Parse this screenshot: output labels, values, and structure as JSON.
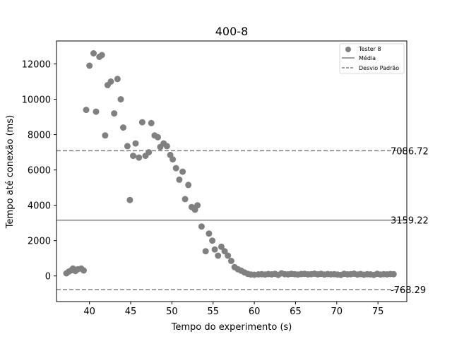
{
  "chart_data": {
    "type": "scatter",
    "title": "400-8",
    "xlabel": "Tempo do experimento (s)",
    "ylabel": "Tempo até conexão (ms)",
    "xlim": [
      36.0,
      78.5
    ],
    "ylim": [
      -1450,
      13300
    ],
    "x_ticks": [
      40,
      45,
      50,
      55,
      60,
      65,
      70,
      75
    ],
    "y_ticks": [
      0,
      2000,
      4000,
      6000,
      8000,
      10000,
      12000
    ],
    "grid": false,
    "legend_position": "top-right",
    "legend": {
      "scatter_label": "Tester 8",
      "mean_label": "Média",
      "std_label": "Desvio Padrão"
    },
    "reference_lines": {
      "mean": 3159.22,
      "upper": 7086.72,
      "lower": -768.29,
      "mean_label": "3159.22",
      "upper_label": "7086.72",
      "lower_label": "-768.29"
    },
    "colors": {
      "points": "#808080",
      "lines": "#808080",
      "axes": "#000000"
    },
    "series": [
      {
        "name": "Tester 8",
        "points": [
          [
            37.2,
            150
          ],
          [
            37.5,
            250
          ],
          [
            37.8,
            320
          ],
          [
            38.0,
            420
          ],
          [
            38.3,
            280
          ],
          [
            38.6,
            380
          ],
          [
            39.0,
            420
          ],
          [
            39.3,
            310
          ],
          [
            39.6,
            9400
          ],
          [
            40.0,
            11900
          ],
          [
            40.5,
            12600
          ],
          [
            40.8,
            9300
          ],
          [
            41.2,
            12400
          ],
          [
            41.5,
            12500
          ],
          [
            41.9,
            7950
          ],
          [
            42.2,
            10800
          ],
          [
            42.6,
            11000
          ],
          [
            43.0,
            9200
          ],
          [
            43.4,
            11150
          ],
          [
            43.8,
            10000
          ],
          [
            44.1,
            8400
          ],
          [
            44.6,
            7350
          ],
          [
            44.9,
            4300
          ],
          [
            45.3,
            6800
          ],
          [
            45.6,
            7500
          ],
          [
            46.0,
            6700
          ],
          [
            46.4,
            8700
          ],
          [
            46.8,
            6800
          ],
          [
            47.2,
            7000
          ],
          [
            47.5,
            8650
          ],
          [
            47.9,
            7950
          ],
          [
            48.3,
            7850
          ],
          [
            48.6,
            7300
          ],
          [
            49.0,
            7500
          ],
          [
            49.4,
            7350
          ],
          [
            49.8,
            6850
          ],
          [
            50.1,
            6600
          ],
          [
            50.5,
            6100
          ],
          [
            50.9,
            5450
          ],
          [
            51.3,
            5900
          ],
          [
            51.6,
            4350
          ],
          [
            52.0,
            5150
          ],
          [
            52.4,
            3900
          ],
          [
            52.8,
            3750
          ],
          [
            53.1,
            4000
          ],
          [
            53.6,
            2800
          ],
          [
            54.1,
            1400
          ],
          [
            54.5,
            2400
          ],
          [
            54.9,
            2000
          ],
          [
            55.2,
            1500
          ],
          [
            55.6,
            1150
          ],
          [
            56.0,
            1650
          ],
          [
            56.4,
            1400
          ],
          [
            56.8,
            1150
          ],
          [
            57.2,
            850
          ],
          [
            57.6,
            500
          ],
          [
            58.0,
            380
          ],
          [
            58.4,
            300
          ],
          [
            58.8,
            200
          ],
          [
            59.2,
            120
          ],
          [
            59.6,
            80
          ],
          [
            60.0,
            70
          ],
          [
            60.5,
            90
          ],
          [
            60.9,
            100
          ],
          [
            61.3,
            80
          ],
          [
            61.7,
            110
          ],
          [
            62.1,
            90
          ],
          [
            62.5,
            120
          ],
          [
            62.9,
            60
          ],
          [
            63.3,
            150
          ],
          [
            63.7,
            100
          ],
          [
            64.1,
            90
          ],
          [
            64.5,
            120
          ],
          [
            64.9,
            100
          ],
          [
            65.3,
            80
          ],
          [
            65.7,
            110
          ],
          [
            66.1,
            120
          ],
          [
            66.5,
            90
          ],
          [
            66.9,
            100
          ],
          [
            67.3,
            130
          ],
          [
            67.7,
            90
          ],
          [
            68.1,
            120
          ],
          [
            68.5,
            80
          ],
          [
            68.9,
            110
          ],
          [
            69.3,
            90
          ],
          [
            69.7,
            100
          ],
          [
            70.1,
            80
          ],
          [
            70.5,
            60
          ],
          [
            70.9,
            120
          ],
          [
            71.3,
            90
          ],
          [
            71.7,
            100
          ],
          [
            72.1,
            130
          ],
          [
            72.5,
            80
          ],
          [
            72.9,
            110
          ],
          [
            73.3,
            70
          ],
          [
            73.7,
            100
          ],
          [
            74.1,
            90
          ],
          [
            74.5,
            60
          ],
          [
            74.9,
            120
          ],
          [
            75.3,
            80
          ],
          [
            75.7,
            100
          ],
          [
            76.1,
            90
          ],
          [
            76.5,
            110
          ],
          [
            76.9,
            100
          ]
        ]
      }
    ]
  }
}
